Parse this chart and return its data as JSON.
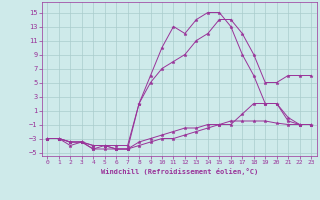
{
  "title": "",
  "xlabel": "Windchill (Refroidissement éolien,°C)",
  "background_color": "#ceeaea",
  "line_color": "#993399",
  "grid_color": "#aacccc",
  "xlim": [
    -0.5,
    23.5
  ],
  "ylim": [
    -5.5,
    16.5
  ],
  "xticks": [
    0,
    1,
    2,
    3,
    4,
    5,
    6,
    7,
    8,
    9,
    10,
    11,
    12,
    13,
    14,
    15,
    16,
    17,
    18,
    19,
    20,
    21,
    22,
    23
  ],
  "yticks": [
    -5,
    -3,
    -1,
    1,
    3,
    5,
    7,
    9,
    11,
    13,
    15
  ],
  "lines": [
    {
      "x": [
        0,
        1,
        2,
        3,
        4,
        5,
        6,
        7,
        8,
        9,
        10,
        11,
        12,
        13,
        14,
        15,
        16,
        17,
        18,
        19,
        20,
        21,
        22,
        23
      ],
      "y": [
        -3,
        -3,
        -3.5,
        -3.5,
        -4,
        -4,
        -4.5,
        -4.5,
        -3.5,
        -3,
        -2.5,
        -2,
        -1.5,
        -1.5,
        -1,
        -1,
        -0.5,
        -0.5,
        -0.5,
        -0.5,
        -0.8,
        -1,
        -1,
        -1
      ]
    },
    {
      "x": [
        0,
        1,
        2,
        3,
        4,
        5,
        6,
        7,
        8,
        9,
        10,
        11,
        12,
        13,
        14,
        15,
        16,
        17,
        18,
        19,
        20,
        21,
        22,
        23
      ],
      "y": [
        -3,
        -3,
        -4,
        -3.5,
        -4.5,
        -4,
        -4.5,
        -4.5,
        -4,
        -3.5,
        -3,
        -3,
        -2.5,
        -2,
        -1.5,
        -1,
        -1,
        0.5,
        2,
        2,
        2,
        0,
        -1,
        -1
      ]
    },
    {
      "x": [
        0,
        1,
        2,
        3,
        4,
        5,
        6,
        7,
        8,
        9,
        10,
        11,
        12,
        13,
        14,
        15,
        16,
        17,
        18,
        19,
        20,
        21,
        22,
        23
      ],
      "y": [
        -3,
        -3,
        -3.5,
        -3.5,
        -4.5,
        -4.5,
        -4.5,
        -4.5,
        2,
        6,
        10,
        13,
        12,
        14,
        15,
        15,
        13,
        9,
        6,
        2,
        2,
        -0.5,
        -1,
        -1
      ]
    },
    {
      "x": [
        0,
        1,
        2,
        3,
        4,
        5,
        6,
        7,
        8,
        9,
        10,
        11,
        12,
        13,
        14,
        15,
        16,
        17,
        18,
        19,
        20,
        21,
        22,
        23
      ],
      "y": [
        -3,
        -3,
        -3.5,
        -3.5,
        -4,
        -4,
        -4,
        -4,
        2,
        5,
        7,
        8,
        9,
        11,
        12,
        14,
        14,
        12,
        9,
        5,
        5,
        6,
        6,
        6
      ]
    }
  ]
}
